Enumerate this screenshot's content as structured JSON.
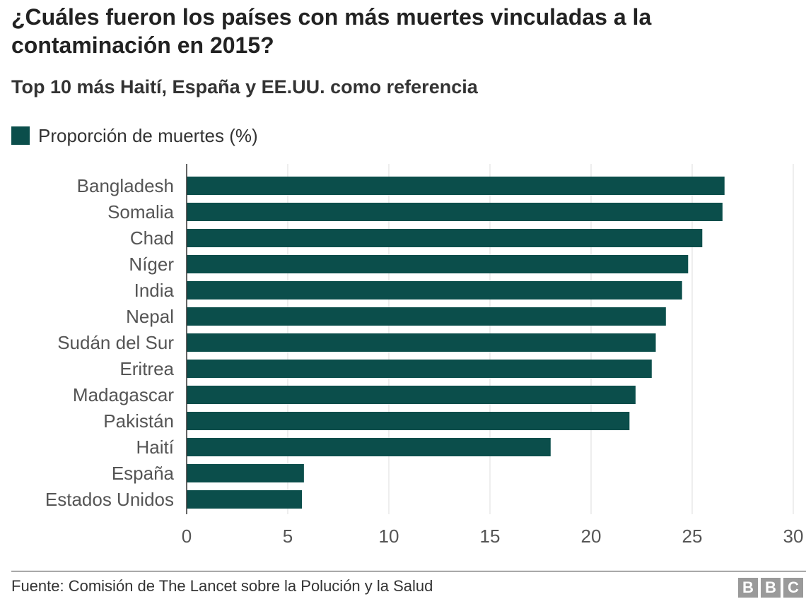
{
  "title": "¿Cuáles fueron los países con más muertes vinculadas a la contaminación en 2015?",
  "subtitle": "Top 10 más Haití, España y EE.UU. como referencia",
  "source": "Fuente: Comisión de The Lancet sobre la Polución y la Salud",
  "logo": [
    "B",
    "B",
    "C"
  ],
  "colors": {
    "bar": "#0b4e4b",
    "grid": "#dcdcdc",
    "axis": "#333333"
  },
  "chart_data": {
    "type": "bar",
    "orientation": "horizontal",
    "categories": [
      "Bangladesh",
      "Somalia",
      "Chad",
      "Níger",
      "India",
      "Nepal",
      "Sudán del Sur",
      "Eritrea",
      "Madagascar",
      "Pakistán",
      "Haití",
      "España",
      "Estados Unidos"
    ],
    "series": [
      {
        "name": "Proporción de muertes (%)",
        "values": [
          26.6,
          26.5,
          25.5,
          24.8,
          24.5,
          23.7,
          23.2,
          23.0,
          22.2,
          21.9,
          18.0,
          5.8,
          5.7
        ]
      }
    ],
    "xlim": [
      0,
      30
    ],
    "xticks": [
      0,
      5,
      10,
      15,
      20,
      25,
      30
    ],
    "grid": "vertical",
    "legend": "top-left"
  }
}
